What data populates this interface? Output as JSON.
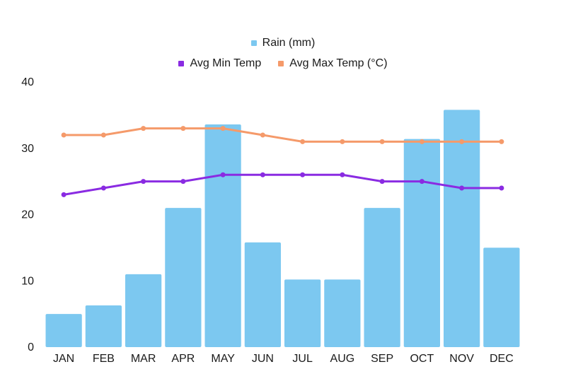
{
  "chart_data": {
    "type": "bar",
    "categories": [
      "JAN",
      "FEB",
      "MAR",
      "APR",
      "MAY",
      "JUN",
      "JUL",
      "AUG",
      "SEP",
      "OCT",
      "NOV",
      "DEC"
    ],
    "series": [
      {
        "name": "Rain (mm)",
        "type": "bar",
        "color": "#7cc8f0",
        "values": [
          5,
          6.3,
          11,
          21,
          33.6,
          15.8,
          10.2,
          10.2,
          21,
          31.4,
          35.8,
          15
        ]
      },
      {
        "name": "Avg Min Temp",
        "type": "line",
        "color": "#8a2be2",
        "values": [
          23,
          24,
          25,
          25,
          26,
          26,
          26,
          26,
          25,
          25,
          24,
          24
        ]
      },
      {
        "name": "Avg Max Temp (°C)",
        "type": "line",
        "color": "#f59a6a",
        "values": [
          32,
          32,
          33,
          33,
          33,
          32,
          31,
          31,
          31,
          31,
          31,
          31
        ]
      }
    ],
    "yticks": [
      0,
      10,
      20,
      30,
      40
    ],
    "ylim": [
      0,
      40
    ],
    "title": "",
    "xlabel": "",
    "ylabel": "",
    "legend": "top-center"
  }
}
